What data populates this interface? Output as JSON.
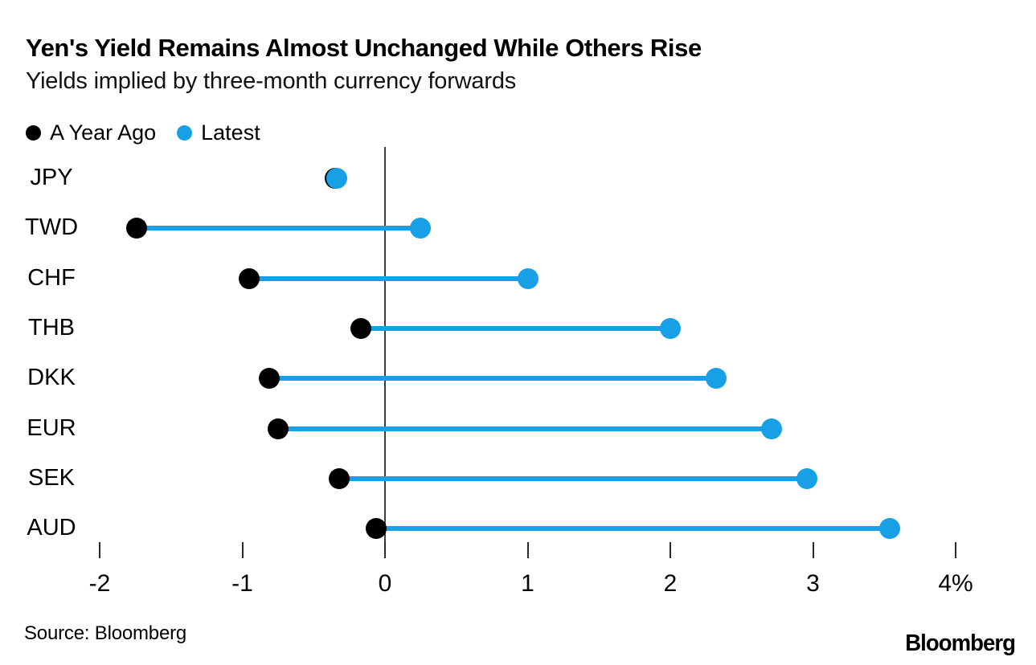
{
  "page": {
    "background": "#ffffff"
  },
  "chart_data": {
    "type": "scatter",
    "variant": "dumbbell-dot-plot",
    "title": "Yen's Yield Remains Almost Unchanged While Others Rise",
    "subtitle": "Yields implied by three-month currency forwards",
    "categories": [
      "JPY",
      "TWD",
      "CHF",
      "THB",
      "DKK",
      "EUR",
      "SEK",
      "AUD"
    ],
    "series": [
      {
        "name": "A Year Ago",
        "color": "#000000",
        "values": [
          -0.35,
          -1.74,
          -0.95,
          -0.17,
          -0.81,
          -0.75,
          -0.32,
          -0.06
        ]
      },
      {
        "name": "Latest",
        "color": "#18a0e6",
        "values": [
          -0.34,
          0.25,
          1.0,
          2.0,
          2.32,
          2.71,
          2.96,
          3.54
        ]
      }
    ],
    "xlabel": "",
    "ylabel": "",
    "unit": "%",
    "xlim": [
      -2.1,
      4.45
    ],
    "x_ticks": [
      -2,
      -1,
      0,
      1,
      2,
      3,
      4
    ],
    "x_tick_labels": [
      "-2",
      "-1",
      "0",
      "1",
      "2",
      "3",
      "4%"
    ],
    "grid": false,
    "legend_position": "top-left",
    "zero_line": true,
    "zero_line_color": "#3d3d3d",
    "tick_color": "#2a2a2a",
    "source": "Source: Bloomberg",
    "brand": "Bloomberg"
  }
}
